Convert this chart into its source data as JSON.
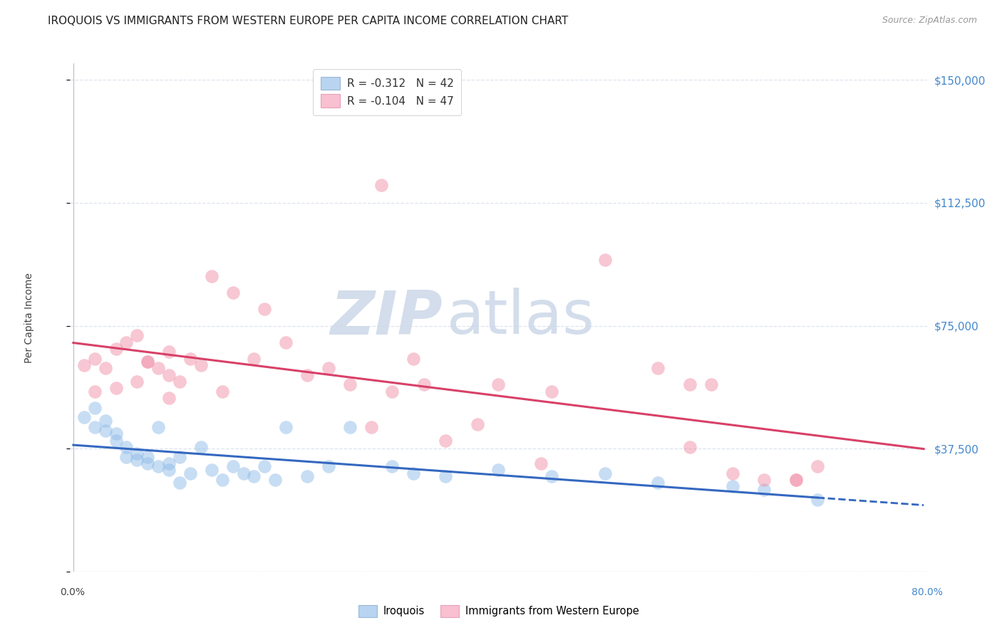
{
  "title": "IROQUOIS VS IMMIGRANTS FROM WESTERN EUROPE PER CAPITA INCOME CORRELATION CHART",
  "source": "Source: ZipAtlas.com",
  "ylabel": "Per Capita Income",
  "yticks": [
    0,
    37500,
    75000,
    112500,
    150000
  ],
  "ytick_labels": [
    "",
    "$37,500",
    "$75,000",
    "$112,500",
    "$150,000"
  ],
  "watermark_zip": "ZIP",
  "watermark_atlas": "atlas",
  "legend_top_label1": "R = -0.312   N = 42",
  "legend_top_label2": "R = -0.104   N = 47",
  "legend_bottom_labels": [
    "Iroquois",
    "Immigrants from Western Europe"
  ],
  "iroquois_color": "#90bce8",
  "western_europe_color": "#f090a8",
  "iroquois_line_color": "#3468c0",
  "western_europe_line_color": "#d84068",
  "iroquois_legend_color": "#b8d4f0",
  "western_legend_color": "#f8c0d0",
  "iroquois_x": [
    0.01,
    0.02,
    0.02,
    0.03,
    0.03,
    0.04,
    0.04,
    0.05,
    0.05,
    0.06,
    0.06,
    0.07,
    0.07,
    0.08,
    0.08,
    0.09,
    0.09,
    0.1,
    0.1,
    0.11,
    0.12,
    0.13,
    0.14,
    0.15,
    0.16,
    0.17,
    0.18,
    0.19,
    0.2,
    0.22,
    0.24,
    0.26,
    0.3,
    0.32,
    0.35,
    0.4,
    0.45,
    0.5,
    0.55,
    0.62,
    0.65,
    0.7
  ],
  "iroquois_y": [
    47000,
    44000,
    50000,
    43000,
    46000,
    40000,
    42000,
    38000,
    35000,
    34000,
    36000,
    33000,
    35000,
    32000,
    44000,
    31000,
    33000,
    35000,
    27000,
    30000,
    38000,
    31000,
    28000,
    32000,
    30000,
    29000,
    32000,
    28000,
    44000,
    29000,
    32000,
    44000,
    32000,
    30000,
    29000,
    31000,
    29000,
    30000,
    27000,
    26000,
    25000,
    22000
  ],
  "western_europe_x": [
    0.01,
    0.02,
    0.02,
    0.03,
    0.04,
    0.04,
    0.05,
    0.06,
    0.06,
    0.07,
    0.08,
    0.09,
    0.09,
    0.1,
    0.11,
    0.12,
    0.13,
    0.14,
    0.15,
    0.17,
    0.18,
    0.2,
    0.22,
    0.24,
    0.26,
    0.28,
    0.29,
    0.3,
    0.32,
    0.33,
    0.35,
    0.38,
    0.4,
    0.44,
    0.45,
    0.5,
    0.55,
    0.58,
    0.6,
    0.62,
    0.65,
    0.68,
    0.7,
    0.07,
    0.09,
    0.68,
    0.58
  ],
  "western_europe_y": [
    63000,
    65000,
    55000,
    62000,
    68000,
    56000,
    70000,
    58000,
    72000,
    64000,
    62000,
    60000,
    53000,
    58000,
    65000,
    63000,
    90000,
    55000,
    85000,
    65000,
    80000,
    70000,
    60000,
    62000,
    57000,
    44000,
    118000,
    55000,
    65000,
    57000,
    40000,
    45000,
    57000,
    33000,
    55000,
    95000,
    62000,
    57000,
    57000,
    30000,
    28000,
    28000,
    32000,
    64000,
    67000,
    28000,
    38000
  ],
  "xlim_min": 0.0,
  "xlim_max": 0.8,
  "ylim_min": 0,
  "ylim_max": 155000,
  "background_color": "#ffffff",
  "grid_color": "#dde4ee",
  "title_fontsize": 11,
  "source_fontsize": 9,
  "ylabel_fontsize": 10
}
